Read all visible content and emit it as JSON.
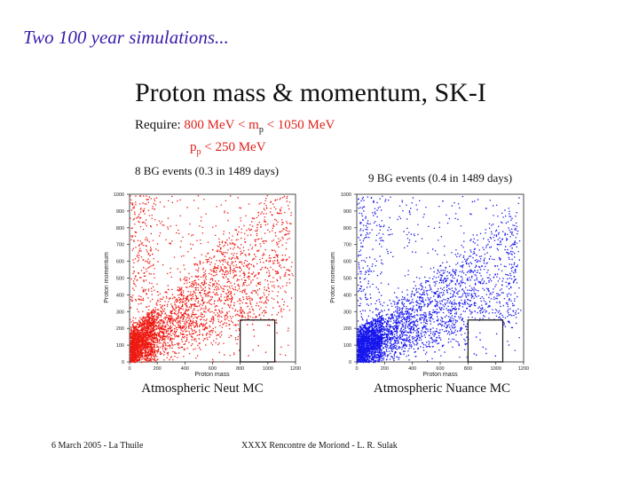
{
  "slide": {
    "title": "Two 100 year simulations...",
    "figure_title": "Proton mass & momentum, SK-I",
    "requirement_prefix": "Require:",
    "mass_cut": "800 MeV < m",
    "mass_cut_sub": "p",
    "mass_cut_upper": "< 1050 MeV",
    "momentum_cut_symbol": "p",
    "momentum_cut_sub": "p",
    "momentum_cut": "< 250 MeV",
    "footer_left": "6 March 2005 - La Thuile",
    "footer_right": "XXXX Rencontre de Moriond - L. R. Sulak",
    "colors": {
      "title": "#3a1ba8",
      "accent": "#e0201b",
      "neut": "#ee1a12",
      "nuance": "#1515ee"
    }
  },
  "chart_data": [
    {
      "type": "scatter",
      "title": "Atmospheric Neut MC",
      "annotation": "8 BG events (0.3 in 1489 days)",
      "xlabel": "Proton mass",
      "ylabel": "Proton momentum",
      "xlim": [
        0,
        1200
      ],
      "ylim": [
        0,
        1000
      ],
      "xticks": [
        "0",
        "200",
        "400",
        "600",
        "800",
        "1000",
        "1200"
      ],
      "yticks": [
        "0",
        "100",
        "200",
        "300",
        "400",
        "500",
        "600",
        "700",
        "800",
        "900",
        "1000"
      ],
      "signal_box": {
        "x": [
          800,
          1050
        ],
        "y": [
          0,
          250
        ]
      },
      "bg_events_in_box": 8,
      "n_points_rendered": 4200,
      "distribution": "dense band rising from low mass/momentum, fanning toward high mass",
      "series": [
        {
          "name": "Neut MC",
          "color": "#ee1a12"
        }
      ]
    },
    {
      "type": "scatter",
      "title": "Atmospheric Nuance MC",
      "annotation": "9 BG events (0.4 in 1489 days)",
      "xlabel": "Proton mass",
      "ylabel": "Proton momentum",
      "xlim": [
        0,
        1200
      ],
      "ylim": [
        0,
        1000
      ],
      "xticks": [
        "0",
        "200",
        "400",
        "600",
        "800",
        "1000",
        "1200"
      ],
      "yticks": [
        "0",
        "100",
        "200",
        "300",
        "400",
        "500",
        "600",
        "700",
        "800",
        "900",
        "1000"
      ],
      "signal_box": {
        "x": [
          800,
          1050
        ],
        "y": [
          0,
          250
        ]
      },
      "bg_events_in_box": 9,
      "n_points_rendered": 4200,
      "distribution": "dense band at low mass, sparse toward high mass",
      "series": [
        {
          "name": "Nuance MC",
          "color": "#1515ee"
        }
      ]
    }
  ]
}
